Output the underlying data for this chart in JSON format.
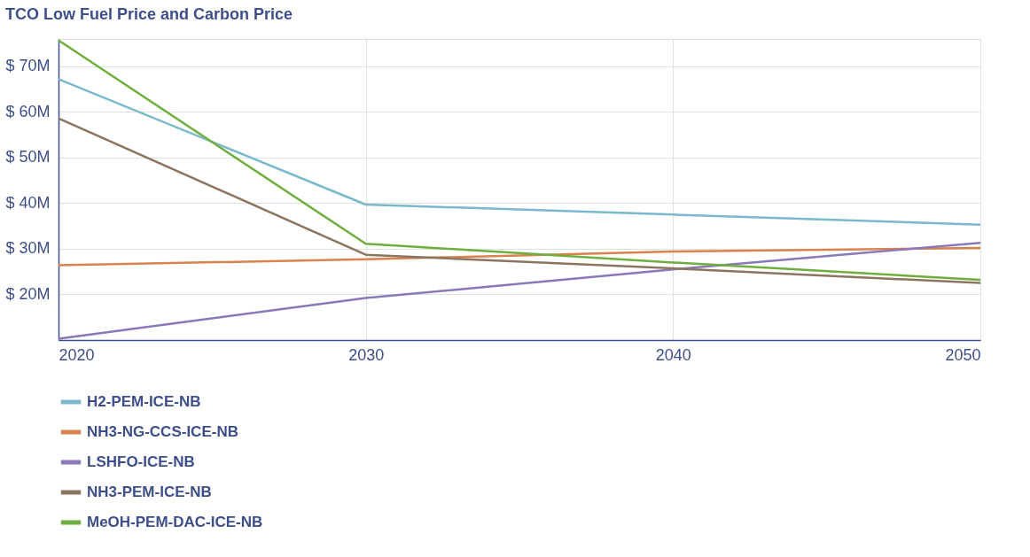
{
  "chart_data": {
    "type": "line",
    "title": "TCO Low Fuel Price and Carbon Price",
    "x": [
      2020,
      2030,
      2040,
      2050
    ],
    "xlim": [
      2020,
      2050
    ],
    "xticks": [
      2020,
      2030,
      2040,
      2050
    ],
    "ylim": [
      10,
      76
    ],
    "yticks": [
      {
        "value": 20,
        "label": "$ 20M"
      },
      {
        "value": 30,
        "label": "$ 30M"
      },
      {
        "value": 40,
        "label": "$ 40M"
      },
      {
        "value": 50,
        "label": "$ 50M"
      },
      {
        "value": 60,
        "label": "$ 60M"
      },
      {
        "value": 70,
        "label": "$ 70M"
      }
    ],
    "grid": true,
    "legend": "bottom",
    "marker": "none",
    "line_style": "solid",
    "series": [
      {
        "name": "H2-PEM-ICE-NB",
        "color": "#7ab8cc",
        "values": [
          67.2,
          39.7,
          37.5,
          35.3
        ]
      },
      {
        "name": "NH3-NG-CCS-ICE-NB",
        "color": "#d9824d",
        "values": [
          26.4,
          27.7,
          29.4,
          30.2
        ]
      },
      {
        "name": "LSHFO-ICE-NB",
        "color": "#8b78b8",
        "values": [
          10.3,
          19.2,
          25.5,
          31.3
        ]
      },
      {
        "name": "NH3-PEM-ICE-NB",
        "color": "#8c7560",
        "values": [
          58.6,
          28.7,
          25.7,
          22.5
        ]
      },
      {
        "name": "MeOH-PEM-DAC-ICE-NB",
        "color": "#6fae3e",
        "values": [
          75.7,
          31.1,
          27.0,
          23.2
        ]
      }
    ]
  }
}
